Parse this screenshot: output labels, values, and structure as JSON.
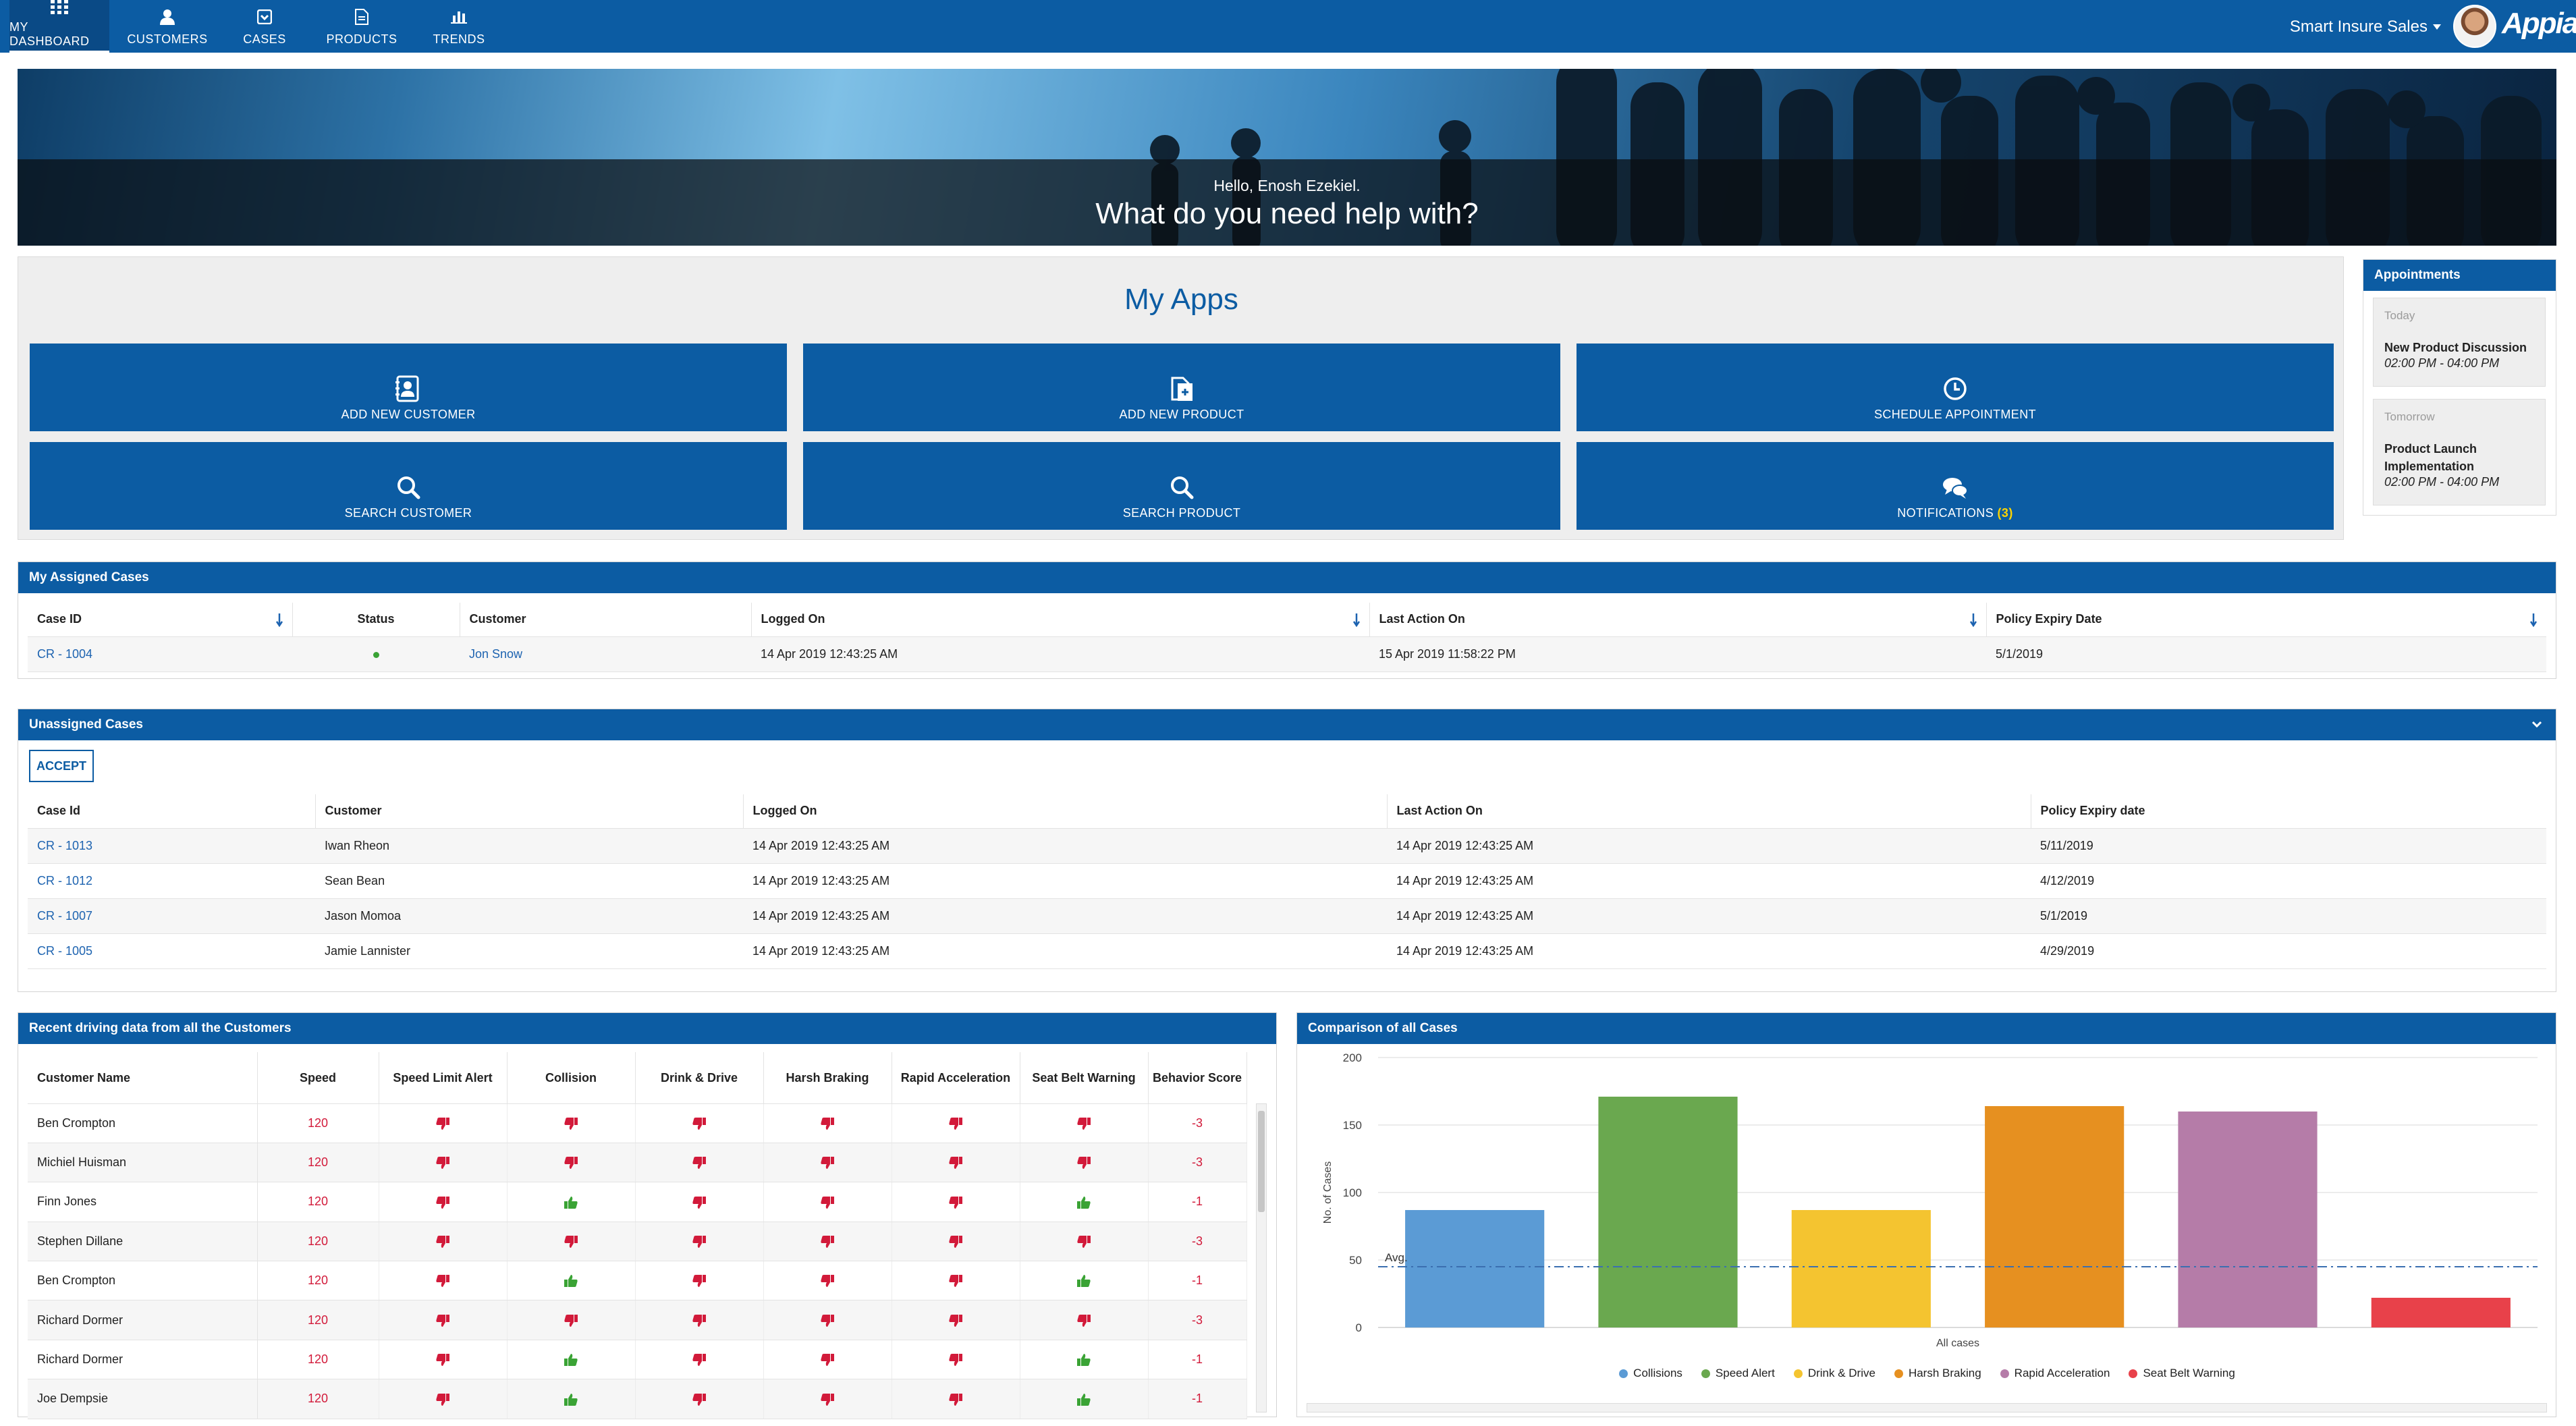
{
  "nav": {
    "tabs": [
      {
        "label": "MY DASHBOARD",
        "icon": "grid-icon"
      },
      {
        "label": "CUSTOMERS",
        "icon": "person-icon"
      },
      {
        "label": "CASES",
        "icon": "case-icon"
      },
      {
        "label": "PRODUCTS",
        "icon": "document-icon"
      },
      {
        "label": "TRENDS",
        "icon": "bar-chart-icon"
      }
    ],
    "site_name": "Smart Insure Sales",
    "logo": "Appian",
    "brand_color": "#0c5ca3"
  },
  "hero": {
    "greeting": "Hello, Enosh Ezekiel.",
    "title": "What do you need help with?"
  },
  "apps": {
    "title": "My Apps",
    "tiles": [
      {
        "label": "ADD NEW CUSTOMER",
        "icon": "add-contact-icon"
      },
      {
        "label": "ADD NEW PRODUCT",
        "icon": "add-document-icon"
      },
      {
        "label": "SCHEDULE APPOINTMENT",
        "icon": "clock-icon"
      },
      {
        "label": "SEARCH CUSTOMER",
        "icon": "search-icon"
      },
      {
        "label": "SEARCH PRODUCT",
        "icon": "search-icon"
      },
      {
        "label": "NOTIFICATIONS",
        "icon": "chat-bubbles-icon",
        "count": "(3)"
      }
    ]
  },
  "appointments": {
    "title": "Appointments",
    "items": [
      {
        "when": "Today",
        "title": "New Product Discussion",
        "time": "02:00 PM - 04:00 PM"
      },
      {
        "when": "Tomorrow",
        "title": "Product Launch Implementation",
        "time": "02:00 PM - 04:00 PM"
      }
    ]
  },
  "assigned": {
    "title": "My Assigned Cases",
    "columns": [
      "Case ID",
      "Status",
      "Customer",
      "Logged On",
      "Last Action On",
      "Policy Expiry Date"
    ],
    "rows": [
      {
        "case_id": "CR - 1004",
        "customer": "Jon Snow",
        "logged_on": "14 Apr 2019 12:43:25 AM",
        "last_action": "15 Apr 2019 11:58:22 PM",
        "expiry": "5/1/2019"
      }
    ]
  },
  "unassigned": {
    "title": "Unassigned Cases",
    "accept_label": "ACCEPT",
    "columns": [
      "Case Id",
      "Customer",
      "Logged On",
      "Last Action On",
      "Policy Expiry date"
    ],
    "rows": [
      {
        "case_id": "CR - 1013",
        "customer": "Iwan Rheon",
        "logged_on": "14 Apr 2019 12:43:25 AM",
        "last_action": "14 Apr 2019 12:43:25 AM",
        "expiry": "5/11/2019"
      },
      {
        "case_id": "CR - 1012",
        "customer": "Sean Bean",
        "logged_on": "14 Apr 2019 12:43:25 AM",
        "last_action": "14 Apr 2019 12:43:25 AM",
        "expiry": "4/12/2019"
      },
      {
        "case_id": "CR - 1007",
        "customer": "Jason Momoa",
        "logged_on": "14 Apr 2019 12:43:25 AM",
        "last_action": "14 Apr 2019 12:43:25 AM",
        "expiry": "5/1/2019"
      },
      {
        "case_id": "CR - 1005",
        "customer": "Jamie Lannister",
        "logged_on": "14 Apr 2019 12:43:25 AM",
        "last_action": "14 Apr 2019 12:43:25 AM",
        "expiry": "4/29/2019"
      }
    ]
  },
  "driving": {
    "title": "Recent driving data from all the Customers",
    "columns": [
      "Customer Name",
      "Speed",
      "Speed Limit Alert",
      "Collision",
      "Drink & Drive",
      "Harsh Braking",
      "Rapid Acceleration",
      "Seat Belt Warning",
      "Behavior Score"
    ],
    "rows": [
      {
        "name": "Ben Crompton",
        "speed": "120",
        "alerts": [
          "down",
          "down",
          "down",
          "down",
          "down",
          "down"
        ],
        "score": "-3"
      },
      {
        "name": "Michiel Huisman",
        "speed": "120",
        "alerts": [
          "down",
          "down",
          "down",
          "down",
          "down",
          "down"
        ],
        "score": "-3"
      },
      {
        "name": "Finn Jones",
        "speed": "120",
        "alerts": [
          "down",
          "up",
          "down",
          "down",
          "down",
          "up"
        ],
        "score": "-1"
      },
      {
        "name": "Stephen Dillane",
        "speed": "120",
        "alerts": [
          "down",
          "down",
          "down",
          "down",
          "down",
          "down"
        ],
        "score": "-3"
      },
      {
        "name": "Ben Crompton",
        "speed": "120",
        "alerts": [
          "down",
          "up",
          "down",
          "down",
          "down",
          "up"
        ],
        "score": "-1"
      },
      {
        "name": "Richard Dormer",
        "speed": "120",
        "alerts": [
          "down",
          "down",
          "down",
          "down",
          "down",
          "down"
        ],
        "score": "-3"
      },
      {
        "name": "Richard Dormer",
        "speed": "120",
        "alerts": [
          "down",
          "up",
          "down",
          "down",
          "down",
          "up"
        ],
        "score": "-1"
      },
      {
        "name": "Joe Dempsie",
        "speed": "120",
        "alerts": [
          "down",
          "up",
          "down",
          "down",
          "down",
          "up"
        ],
        "score": "-1"
      }
    ],
    "colors": {
      "down": "#d21a3a",
      "up": "#3aa335"
    }
  },
  "comparison": {
    "title": "Comparison of all Cases"
  },
  "chart_data": {
    "type": "bar",
    "title": "",
    "xlabel": "All cases",
    "ylabel": "No. of Cases",
    "ylim": [
      0,
      200
    ],
    "yticks": [
      0,
      50,
      100,
      150,
      200
    ],
    "grid": true,
    "legend_position": "bottom",
    "average": {
      "label": "Avg.",
      "value": 45
    },
    "series": [
      {
        "name": "Collisions",
        "value": 87,
        "color": "#5b9bd5"
      },
      {
        "name": "Speed Alert",
        "value": 171,
        "color": "#6aa84f"
      },
      {
        "name": "Drink & Drive",
        "value": 87,
        "color": "#f4c430"
      },
      {
        "name": "Harsh Braking",
        "value": 164,
        "color": "#e69020"
      },
      {
        "name": "Rapid Acceleration",
        "value": 160,
        "color": "#b57ca8"
      },
      {
        "name": "Seat Belt Warning",
        "value": 22,
        "color": "#e8414a"
      }
    ]
  }
}
